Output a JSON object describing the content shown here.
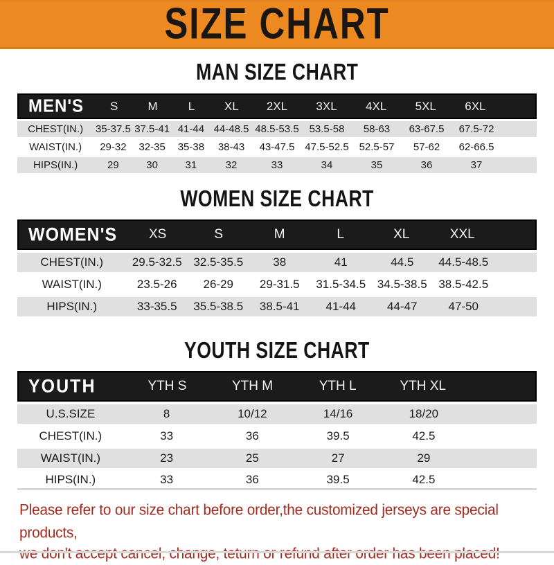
{
  "banner": {
    "title": "SIZE CHART"
  },
  "sections": [
    {
      "title": "MAN SIZE CHART",
      "table": {
        "label": "MEN'S",
        "columns": [
          "S",
          "M",
          "L",
          "XL",
          "2XL",
          "3XL",
          "4XL",
          "5XL",
          "6XL"
        ],
        "rows": [
          {
            "label": "CHEST(IN.)",
            "values": [
              "35-37.5",
              "37.5-41",
              "41-44",
              "44-48.5",
              "48.5-53.5",
              "53.5-58",
              "58-63",
              "63-67.5",
              "67.5-72"
            ]
          },
          {
            "label": "WAIST(IN.)",
            "values": [
              "29-32",
              "32-35",
              "35-38",
              "38-43",
              "43-47.5",
              "47.5-52.5",
              "52.5-57",
              "57-62",
              "62-66.5"
            ]
          },
          {
            "label": "HIPS(IN.)",
            "values": [
              "29",
              "30",
              "31",
              "32",
              "33",
              "34",
              "35",
              "36",
              "37"
            ]
          }
        ]
      }
    },
    {
      "title": "WOMEN SIZE CHART",
      "table": {
        "label": "WOMEN'S",
        "columns": [
          "XS",
          "S",
          "M",
          "L",
          "XL",
          "XXL"
        ],
        "rows": [
          {
            "label": "CHEST(IN.)",
            "values": [
              "29.5-32.5",
              "32.5-35.5",
              "38",
              "41",
              "44.5",
              "44.5-48.5"
            ]
          },
          {
            "label": "WAIST(IN.)",
            "values": [
              "23.5-26",
              "26-29",
              "29-31.5",
              "31.5-34.5",
              "34.5-38.5",
              "38.5-42.5"
            ]
          },
          {
            "label": "HIPS(IN.)",
            "values": [
              "33-35.5",
              "35.5-38.5",
              "38.5-41",
              "41-44",
              "44-47",
              "47-50"
            ]
          }
        ]
      }
    },
    {
      "title": "YOUTH SIZE CHART",
      "table": {
        "label": "YOUTH",
        "columns": [
          "YTH S",
          "YTH M",
          "YTH L",
          "YTH XL"
        ],
        "rows": [
          {
            "label": "U.S.SIZE",
            "values": [
              "8",
              "10/12",
              "14/16",
              "18/20"
            ]
          },
          {
            "label": "CHEST(IN.)",
            "values": [
              "33",
              "36",
              "39.5",
              "42.5"
            ]
          },
          {
            "label": "WAIST(IN.)",
            "values": [
              "23",
              "25",
              "27",
              "29"
            ]
          },
          {
            "label": "HIPS(IN.)",
            "values": [
              "33",
              "36",
              "39.5",
              "42.5"
            ]
          }
        ]
      }
    }
  ],
  "footer": {
    "line1": "Please refer to our size chart before order,the customized jerseys are special products,",
    "line2": "we don't accept cancel, change, teturn or refund after order has been placed!"
  },
  "colors": {
    "accent_orange": "#EC8920",
    "header_black": "#1b1b1b",
    "row_gray": "#E0E0E0",
    "footer_red": "#A22B20"
  }
}
